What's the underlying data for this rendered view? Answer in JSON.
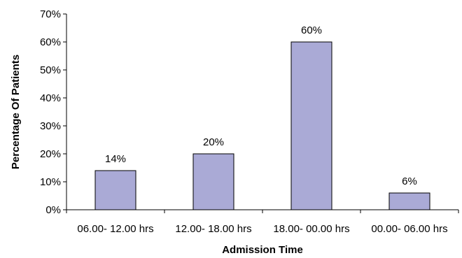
{
  "chart_data": {
    "type": "bar",
    "title": "",
    "xlabel": "Admission Time",
    "ylabel": "Percentage Of Patients",
    "categories": [
      "06.00- 12.00 hrs",
      "12.00- 18.00 hrs",
      "18.00- 00.00 hrs",
      "00.00- 06.00 hrs"
    ],
    "values": [
      14,
      20,
      60,
      6
    ],
    "data_labels": [
      "14%",
      "20%",
      "60%",
      "6%"
    ],
    "ylim": [
      0,
      70
    ],
    "yticks": [
      0,
      10,
      20,
      30,
      40,
      50,
      60,
      70
    ],
    "ytick_labels": [
      "0%",
      "10%",
      "20%",
      "30%",
      "40%",
      "50%",
      "60%",
      "70%"
    ],
    "grid": false,
    "legend": "none",
    "bar_color": "#aaaad6"
  }
}
